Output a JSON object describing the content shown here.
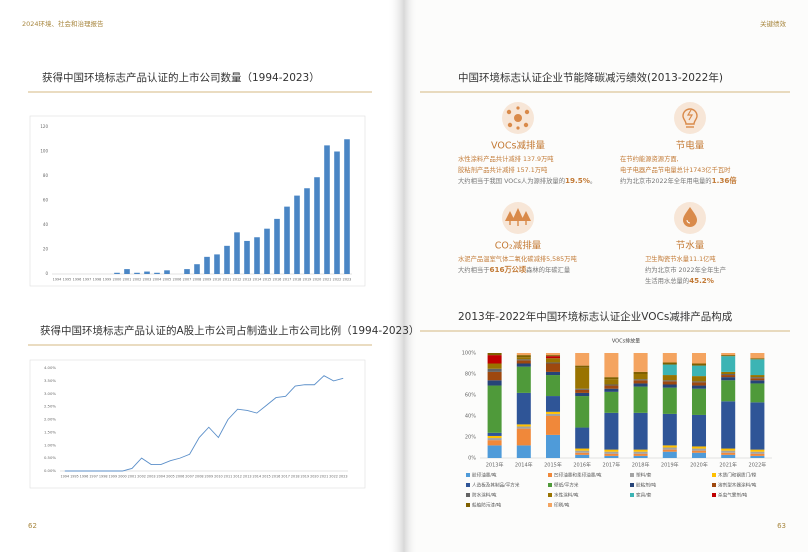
{
  "left_header": "2024环境、社会和治理报告",
  "right_header": "关键绩效",
  "left_page_number": "62",
  "right_page_number": "63",
  "kpi_section": {
    "title": "中国环境标志认证企业节能降碳减污绩效(2013-2022年)",
    "items": [
      {
        "title": "VOCs减排量",
        "lines": [
          {
            "color": "#c27a36",
            "parts": [
              {
                "text": "水性涂料产品共计减排 137.9万吨"
              }
            ]
          },
          {
            "color": "#c27a36",
            "parts": [
              {
                "text": "胶粘剂产品共计减排 157.1万吨"
              }
            ]
          },
          {
            "color": "#777777",
            "parts": [
              {
                "text": "大约相当于我国 VOCs人为源排放量的"
              },
              {
                "text": "19.5%",
                "bold": true
              },
              {
                "text": "。"
              }
            ]
          }
        ]
      },
      {
        "title": "节电量",
        "lines": [
          {
            "color": "#c27a36",
            "parts": [
              {
                "text": "在节约能源资源方面,"
              }
            ]
          },
          {
            "color": "#c27a36",
            "parts": [
              {
                "text": "电子电器产品节电量总计1743亿千瓦时"
              }
            ]
          },
          {
            "color": "#777777",
            "parts": [
              {
                "text": "约为北京市2022年全年用电量的"
              },
              {
                "text": "1.36倍",
                "bold": true
              }
            ]
          }
        ]
      },
      {
        "title": "CO₂减排量",
        "lines": [
          {
            "color": "#c27a36",
            "parts": [
              {
                "text": "水泥产品温室气体二氧化碳减排5,585万吨"
              }
            ]
          },
          {
            "color": "#777777",
            "parts": [
              {
                "text": "大约相当于"
              },
              {
                "text": "616万公顷",
                "bold": true
              },
              {
                "text": "森林的年碳汇量"
              }
            ]
          }
        ]
      },
      {
        "title": "节水量",
        "lines": [
          {
            "color": "#c27a36",
            "parts": [
              {
                "text": "卫生陶瓷节水量11.1亿吨"
              }
            ]
          },
          {
            "color": "#777777",
            "parts": [
              {
                "text": "约为北京市 2022年全年生产"
              }
            ]
          },
          {
            "color": "#777777",
            "parts": [
              {
                "text": "生活用水总量的"
              },
              {
                "text": "45.2%",
                "bold": true
              }
            ]
          }
        ]
      }
    ]
  },
  "chart_data": [
    {
      "type": "bar",
      "title": "获得中国环境标志产品认证的上市公司数量（1994-2023）",
      "categories": [
        "1994",
        "1995",
        "1996",
        "1997",
        "1998",
        "1999",
        "2000",
        "2001",
        "2002",
        "2003",
        "2004",
        "2005",
        "2006",
        "2007",
        "2008",
        "2009",
        "2010",
        "2011",
        "2012",
        "2013",
        "2014",
        "2015",
        "2016",
        "2017",
        "2018",
        "2019",
        "2020",
        "2021",
        "2022",
        "2023"
      ],
      "values": [
        0,
        0,
        0,
        0,
        0,
        0,
        1,
        4,
        1,
        2,
        1,
        3,
        0,
        4,
        8,
        14,
        16,
        23,
        34,
        27,
        30,
        37,
        45,
        55,
        64,
        70,
        79,
        105,
        100,
        110
      ],
      "color": "#4a86c5",
      "ylim": [
        0,
        120
      ],
      "yticks": [
        0,
        20,
        40,
        60,
        80,
        100,
        120
      ],
      "grid": false
    },
    {
      "type": "line",
      "title": "获得中国环境标志产品认证的A股上市公司占制造业上市公司比例（1994-2023）",
      "categories": [
        "1994",
        "1995",
        "1996",
        "1997",
        "1998",
        "1999",
        "2000",
        "2001",
        "2002",
        "2003",
        "2004",
        "2005",
        "2006",
        "2007",
        "2008",
        "2009",
        "2010",
        "2011",
        "2012",
        "2013",
        "2014",
        "2015",
        "2016",
        "2017",
        "2018",
        "2019",
        "2020",
        "2021",
        "2022",
        "2023"
      ],
      "values": [
        0,
        0,
        0,
        0,
        0,
        0,
        0,
        0.1,
        0.5,
        0.25,
        0.25,
        0.4,
        0.5,
        0.65,
        1.3,
        1.7,
        1.3,
        2.0,
        2.4,
        2.35,
        2.25,
        2.55,
        2.85,
        2.9,
        3.3,
        3.35,
        3.35,
        3.7,
        3.5,
        3.6
      ],
      "color": "#5b8fc9",
      "ylim": [
        0,
        4
      ],
      "yticks": [
        {
          "value": 0,
          "label": "0.00%"
        },
        {
          "value": 0.5,
          "label": "0.50%"
        },
        {
          "value": 1,
          "label": "1.00%"
        },
        {
          "value": 1.5,
          "label": "1.50%"
        },
        {
          "value": 2,
          "label": "2.00%"
        },
        {
          "value": 2.5,
          "label": "2.50%"
        },
        {
          "value": 3,
          "label": "3.00%"
        },
        {
          "value": 3.5,
          "label": "3.50%"
        },
        {
          "value": 4,
          "label": "4.00%"
        }
      ],
      "grid": false
    },
    {
      "type": "stacked_bar",
      "title": "2013年-2022年中国环境标志认证企业VOCs减排产品构成",
      "subtitle": "VOCs排放量",
      "categories": [
        "2013年",
        "2014年",
        "2015年",
        "2016年",
        "2017年",
        "2018年",
        "2019年",
        "2020年",
        "2021年",
        "2022年"
      ],
      "ylim": [
        0,
        100
      ],
      "yticks": [
        {
          "value": 0,
          "label": "0%"
        },
        {
          "value": 20,
          "label": "20%"
        },
        {
          "value": 40,
          "label": "40%"
        },
        {
          "value": 60,
          "label": "60%"
        },
        {
          "value": 80,
          "label": "80%"
        },
        {
          "value": 100,
          "label": "100%"
        }
      ],
      "grid": false,
      "series": [
        {
          "name": "胶印油墨/吨",
          "color": "#4f9bd9",
          "values": [
            12,
            12,
            22,
            3,
            2,
            2,
            6,
            5,
            3,
            2
          ]
        },
        {
          "name": "凹印油墨和柔印油墨/吨",
          "color": "#f0883a",
          "values": [
            5,
            16,
            18,
            2,
            2,
            2,
            2,
            2,
            2,
            2
          ]
        },
        {
          "name": "塑料/套",
          "color": "#a3a3a3",
          "values": [
            2,
            2,
            2,
            2,
            2,
            2,
            2,
            2,
            2,
            2
          ]
        },
        {
          "name": "木质门和钢质门/樘",
          "color": "#ffc000",
          "values": [
            2,
            2,
            2,
            2,
            2,
            2,
            2,
            2,
            2,
            2
          ]
        },
        {
          "name": "人造板及其制品/平方米",
          "color": "#2f5597",
          "values": [
            3,
            30,
            15,
            20,
            35,
            35,
            30,
            30,
            45,
            45
          ]
        },
        {
          "name": "壁纸/平方米",
          "color": "#4f9a3a",
          "values": [
            45,
            25,
            20,
            30,
            20,
            25,
            25,
            25,
            20,
            18
          ]
        },
        {
          "name": "胶粘剂/吨",
          "color": "#264478",
          "values": [
            5,
            3,
            3,
            3,
            3,
            3,
            3,
            3,
            3,
            3
          ]
        },
        {
          "name": "溶剂型木器涂料/吨",
          "color": "#9e480e",
          "values": [
            8,
            3,
            8,
            3,
            3,
            3,
            3,
            3,
            2,
            2
          ]
        },
        {
          "name": "防水涂料/吨",
          "color": "#636363",
          "values": [
            3,
            1,
            1,
            1,
            1,
            1,
            1,
            1,
            1,
            1
          ]
        },
        {
          "name": "水性涂料/吨",
          "color": "#997300",
          "values": [
            5,
            2,
            4,
            20,
            5,
            5,
            5,
            5,
            2,
            2
          ]
        },
        {
          "name": "家具/套",
          "color": "#3cb4b4",
          "values": [
            0,
            0,
            0,
            0,
            0,
            0,
            10,
            10,
            15,
            15
          ]
        },
        {
          "name": "杀虫气雾剂/吨",
          "color": "#c00000",
          "values": [
            8,
            0,
            2,
            0,
            0,
            0,
            0,
            0,
            0,
            0
          ]
        },
        {
          "name": "船舶防污漆/吨",
          "color": "#7f6000",
          "values": [
            2,
            2,
            1,
            2,
            2,
            2,
            2,
            2,
            1,
            1
          ]
        },
        {
          "name": "印刷/吨",
          "color": "#f4a460",
          "values": [
            0,
            2,
            2,
            12,
            23,
            18,
            9,
            10,
            2,
            5
          ]
        }
      ]
    }
  ]
}
